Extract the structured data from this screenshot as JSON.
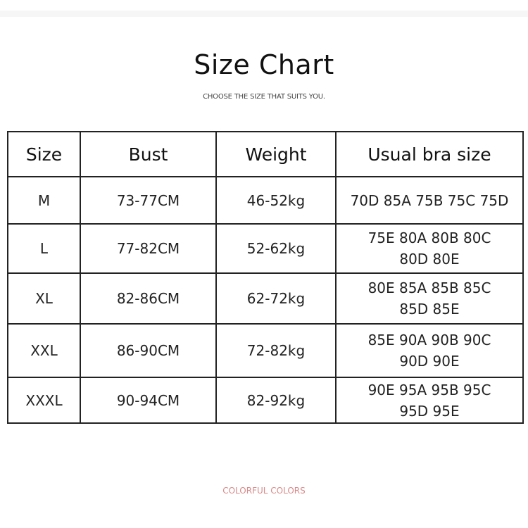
{
  "title": "Size Chart",
  "subtitle": "CHOOSE THE SIZE THAT SUITS YOU.",
  "table": {
    "headers": [
      "Size",
      "Bust",
      "Weight",
      "Usual bra size"
    ],
    "rows": [
      [
        "M",
        "73-77CM",
        "46-52kg",
        "70D 85A 75B 75C 75D"
      ],
      [
        "L",
        "77-82CM",
        "52-62kg",
        "75E 80A 80B 80C 80D 80E"
      ],
      [
        "XL",
        "82-86CM",
        "62-72kg",
        "80E 85A 85B 85C 85D 85E"
      ],
      [
        "XXL",
        "86-90CM",
        "72-82kg",
        "85E 90A 90B 90C 90D 90E"
      ],
      [
        "XXXL",
        "90-94CM",
        "82-92kg",
        "90E 95A 95B 95C 95D 95E"
      ]
    ]
  },
  "footer": "COLORFUL COLORS",
  "colors": {
    "footer": "#d98a8a",
    "border": "#222222"
  }
}
